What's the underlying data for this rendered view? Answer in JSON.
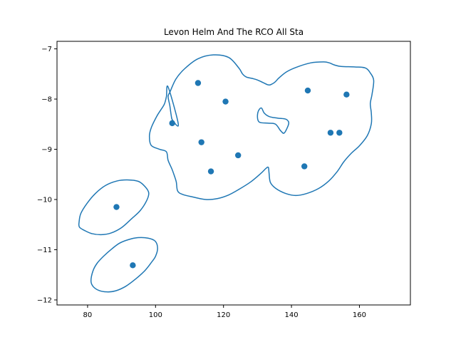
{
  "chart_data": {
    "type": "scatter",
    "title": "Levon Helm And The RCO All Sta",
    "xlabel": "",
    "ylabel": "",
    "xlim": [
      71,
      175
    ],
    "ylim": [
      -12.1,
      -6.85
    ],
    "xticks": [
      80,
      100,
      120,
      140,
      160
    ],
    "yticks": [
      -7,
      -8,
      -9,
      -10,
      -11,
      -12
    ],
    "grid": false,
    "legend": "none",
    "color": "#1f77b4",
    "points": [
      {
        "x": 88.5,
        "y": -10.15
      },
      {
        "x": 93.3,
        "y": -11.31
      },
      {
        "x": 104.9,
        "y": -8.48
      },
      {
        "x": 112.5,
        "y": -7.68
      },
      {
        "x": 113.5,
        "y": -8.86
      },
      {
        "x": 116.3,
        "y": -9.44
      },
      {
        "x": 120.6,
        "y": -8.05
      },
      {
        "x": 124.3,
        "y": -9.12
      },
      {
        "x": 143.8,
        "y": -9.34
      },
      {
        "x": 144.8,
        "y": -7.83
      },
      {
        "x": 151.5,
        "y": -8.67
      },
      {
        "x": 154.1,
        "y": -8.67
      },
      {
        "x": 156.2,
        "y": -7.91
      }
    ],
    "contours": [
      [
        [
          106.7,
          -8.5
        ],
        [
          105.0,
          -8.42
        ],
        [
          104.6,
          -8.32
        ],
        [
          104.2,
          -8.13
        ],
        [
          103.7,
          -7.95
        ],
        [
          104.3,
          -7.85
        ],
        [
          106.0,
          -7.6
        ],
        [
          108.5,
          -7.4
        ],
        [
          112.4,
          -7.2
        ],
        [
          117.0,
          -7.12
        ],
        [
          121.5,
          -7.17
        ],
        [
          124.5,
          -7.38
        ],
        [
          125.6,
          -7.5
        ],
        [
          126.7,
          -7.56
        ],
        [
          128.5,
          -7.59
        ],
        [
          130.0,
          -7.62
        ],
        [
          131.6,
          -7.67
        ],
        [
          133.4,
          -7.72
        ],
        [
          135.0,
          -7.67
        ],
        [
          136.3,
          -7.58
        ],
        [
          138.5,
          -7.46
        ],
        [
          141.3,
          -7.37
        ],
        [
          145.6,
          -7.28
        ],
        [
          149.5,
          -7.26
        ],
        [
          151.2,
          -7.28
        ],
        [
          152.6,
          -7.32
        ],
        [
          154.6,
          -7.35
        ],
        [
          158.7,
          -7.36
        ],
        [
          161.7,
          -7.38
        ],
        [
          163.2,
          -7.48
        ],
        [
          164.2,
          -7.63
        ],
        [
          163.7,
          -7.91
        ],
        [
          163.2,
          -8.09
        ],
        [
          163.5,
          -8.28
        ],
        [
          163.5,
          -8.49
        ],
        [
          162.3,
          -8.73
        ],
        [
          160.0,
          -8.93
        ],
        [
          157.6,
          -9.08
        ],
        [
          155.4,
          -9.25
        ],
        [
          153.5,
          -9.44
        ],
        [
          151.0,
          -9.63
        ],
        [
          148.0,
          -9.78
        ],
        [
          144.5,
          -9.88
        ],
        [
          141.3,
          -9.92
        ],
        [
          138.3,
          -9.88
        ],
        [
          135.4,
          -9.78
        ],
        [
          133.8,
          -9.66
        ],
        [
          133.4,
          -9.47
        ],
        [
          133.2,
          -9.36
        ],
        [
          132.5,
          -9.38
        ],
        [
          131.0,
          -9.48
        ],
        [
          128.0,
          -9.65
        ],
        [
          124.5,
          -9.8
        ],
        [
          121.5,
          -9.91
        ],
        [
          118.3,
          -9.98
        ],
        [
          114.8,
          -10.0
        ],
        [
          111.0,
          -9.95
        ],
        [
          108.0,
          -9.9
        ],
        [
          106.5,
          -9.83
        ],
        [
          106.1,
          -9.65
        ],
        [
          105.5,
          -9.52
        ],
        [
          104.8,
          -9.39
        ],
        [
          103.7,
          -9.22
        ],
        [
          103.2,
          -9.05
        ],
        [
          101.2,
          -9.0
        ],
        [
          98.7,
          -8.92
        ],
        [
          98.2,
          -8.73
        ],
        [
          98.8,
          -8.56
        ],
        [
          100.3,
          -8.35
        ],
        [
          101.5,
          -8.22
        ],
        [
          102.6,
          -8.1
        ],
        [
          103.2,
          -7.95
        ],
        [
          103.7,
          -7.76
        ]
      ],
      [
        [
          130.0,
          -8.32
        ],
        [
          130.4,
          -8.22
        ],
        [
          131.2,
          -8.18
        ],
        [
          132.0,
          -8.28
        ],
        [
          133.5,
          -8.35
        ],
        [
          136.0,
          -8.38
        ],
        [
          138.3,
          -8.4
        ],
        [
          139.2,
          -8.47
        ],
        [
          138.7,
          -8.58
        ],
        [
          137.8,
          -8.68
        ],
        [
          136.8,
          -8.63
        ],
        [
          135.3,
          -8.5
        ],
        [
          133.2,
          -8.48
        ],
        [
          131.0,
          -8.47
        ],
        [
          130.2,
          -8.43
        ]
      ],
      [
        [
          77.5,
          -10.45
        ],
        [
          78.0,
          -10.28
        ],
        [
          79.8,
          -10.08
        ],
        [
          82.3,
          -9.88
        ],
        [
          85.3,
          -9.72
        ],
        [
          88.7,
          -9.63
        ],
        [
          91.7,
          -9.61
        ],
        [
          95.0,
          -9.64
        ],
        [
          97.0,
          -9.75
        ],
        [
          98.0,
          -9.87
        ],
        [
          97.4,
          -10.02
        ],
        [
          95.5,
          -10.22
        ],
        [
          93.0,
          -10.38
        ],
        [
          90.0,
          -10.56
        ],
        [
          86.8,
          -10.67
        ],
        [
          84.0,
          -10.7
        ],
        [
          81.3,
          -10.68
        ],
        [
          79.2,
          -10.62
        ],
        [
          77.6,
          -10.55
        ]
      ],
      [
        [
          81.0,
          -11.62
        ],
        [
          81.6,
          -11.42
        ],
        [
          82.8,
          -11.27
        ],
        [
          84.7,
          -11.13
        ],
        [
          87.2,
          -10.98
        ],
        [
          89.4,
          -10.87
        ],
        [
          92.0,
          -10.8
        ],
        [
          94.8,
          -10.76
        ],
        [
          97.8,
          -10.77
        ],
        [
          99.9,
          -10.83
        ],
        [
          100.6,
          -10.97
        ],
        [
          100.0,
          -11.13
        ],
        [
          98.7,
          -11.26
        ],
        [
          96.8,
          -11.42
        ],
        [
          94.2,
          -11.58
        ],
        [
          91.2,
          -11.73
        ],
        [
          88.2,
          -11.82
        ],
        [
          85.7,
          -11.84
        ],
        [
          83.3,
          -11.81
        ],
        [
          81.6,
          -11.73
        ]
      ]
    ]
  }
}
